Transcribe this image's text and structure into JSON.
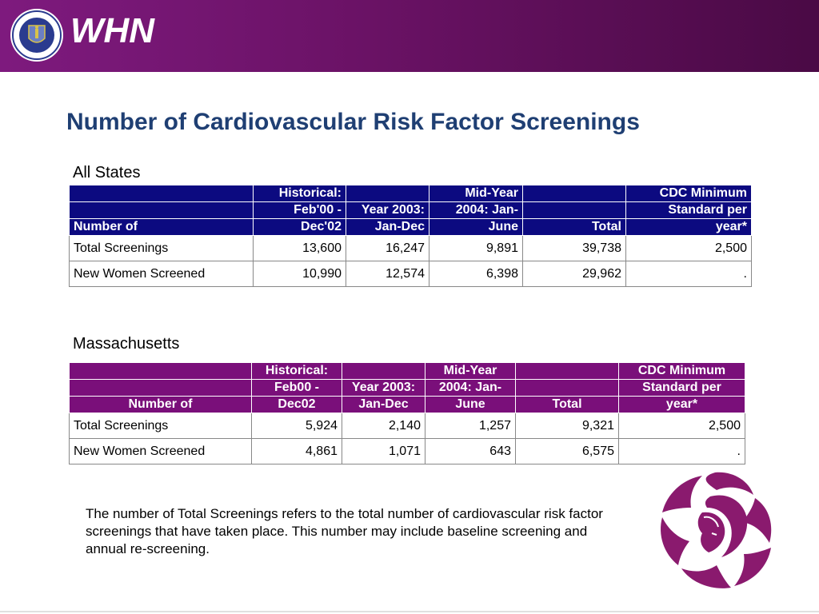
{
  "header": {
    "brand": "WHN"
  },
  "page": {
    "title": "Number of Cardiovascular Risk Factor Screenings"
  },
  "sections": [
    {
      "label": "All States",
      "columns": [
        {
          "lines": [
            "",
            "",
            "Number of"
          ]
        },
        {
          "lines": [
            "Historical:",
            "Feb'00 -",
            "Dec'02"
          ]
        },
        {
          "lines": [
            "",
            "Year 2003:",
            "Jan-Dec"
          ]
        },
        {
          "lines": [
            "Mid-Year",
            "2004:   Jan-",
            "June"
          ]
        },
        {
          "lines": [
            "",
            "",
            "Total"
          ]
        },
        {
          "lines": [
            "CDC Minimum",
            "Standard per",
            "year*"
          ]
        }
      ],
      "rows": [
        {
          "label": "Total Screenings",
          "values": [
            "13,600",
            "16,247",
            "9,891",
            "39,738",
            "2,500"
          ]
        },
        {
          "label": "New Women Screened",
          "values": [
            "10,990",
            "12,574",
            "6,398",
            "29,962",
            "."
          ]
        }
      ]
    },
    {
      "label": "Massachusetts",
      "columns": [
        {
          "lines": [
            "",
            "",
            "Number of"
          ]
        },
        {
          "lines": [
            "Historical:",
            "Feb00 -",
            "Dec02"
          ]
        },
        {
          "lines": [
            "",
            "Year 2003:",
            "Jan-Dec"
          ]
        },
        {
          "lines": [
            "Mid-Year",
            "2004:  Jan-",
            "June"
          ]
        },
        {
          "lines": [
            "",
            "",
            "Total"
          ]
        },
        {
          "lines": [
            "CDC Minimum",
            "Standard per",
            "year*"
          ]
        }
      ],
      "rows": [
        {
          "label": "Total Screenings",
          "values": [
            "5,924",
            "2,140",
            "1,257",
            "9,321",
            "2,500"
          ]
        },
        {
          "label": "New Women Screened",
          "values": [
            "4,861",
            "1,071",
            "643",
            "6,575",
            "."
          ]
        }
      ]
    }
  ],
  "note": "The number of Total Screenings refers to the total number of cardiovascular risk factor screenings that have taken place. This number may include baseline screening and annual re-screening.",
  "colors": {
    "header": "#6a1265",
    "title": "#1f3f73",
    "table1_header": "#0c0a80",
    "table2_header": "#7a0f7a",
    "flower": "#8a1a6e"
  },
  "icons": {
    "seal": "massachusetts-seal-icon",
    "logo": "flower-face-logo-icon"
  }
}
